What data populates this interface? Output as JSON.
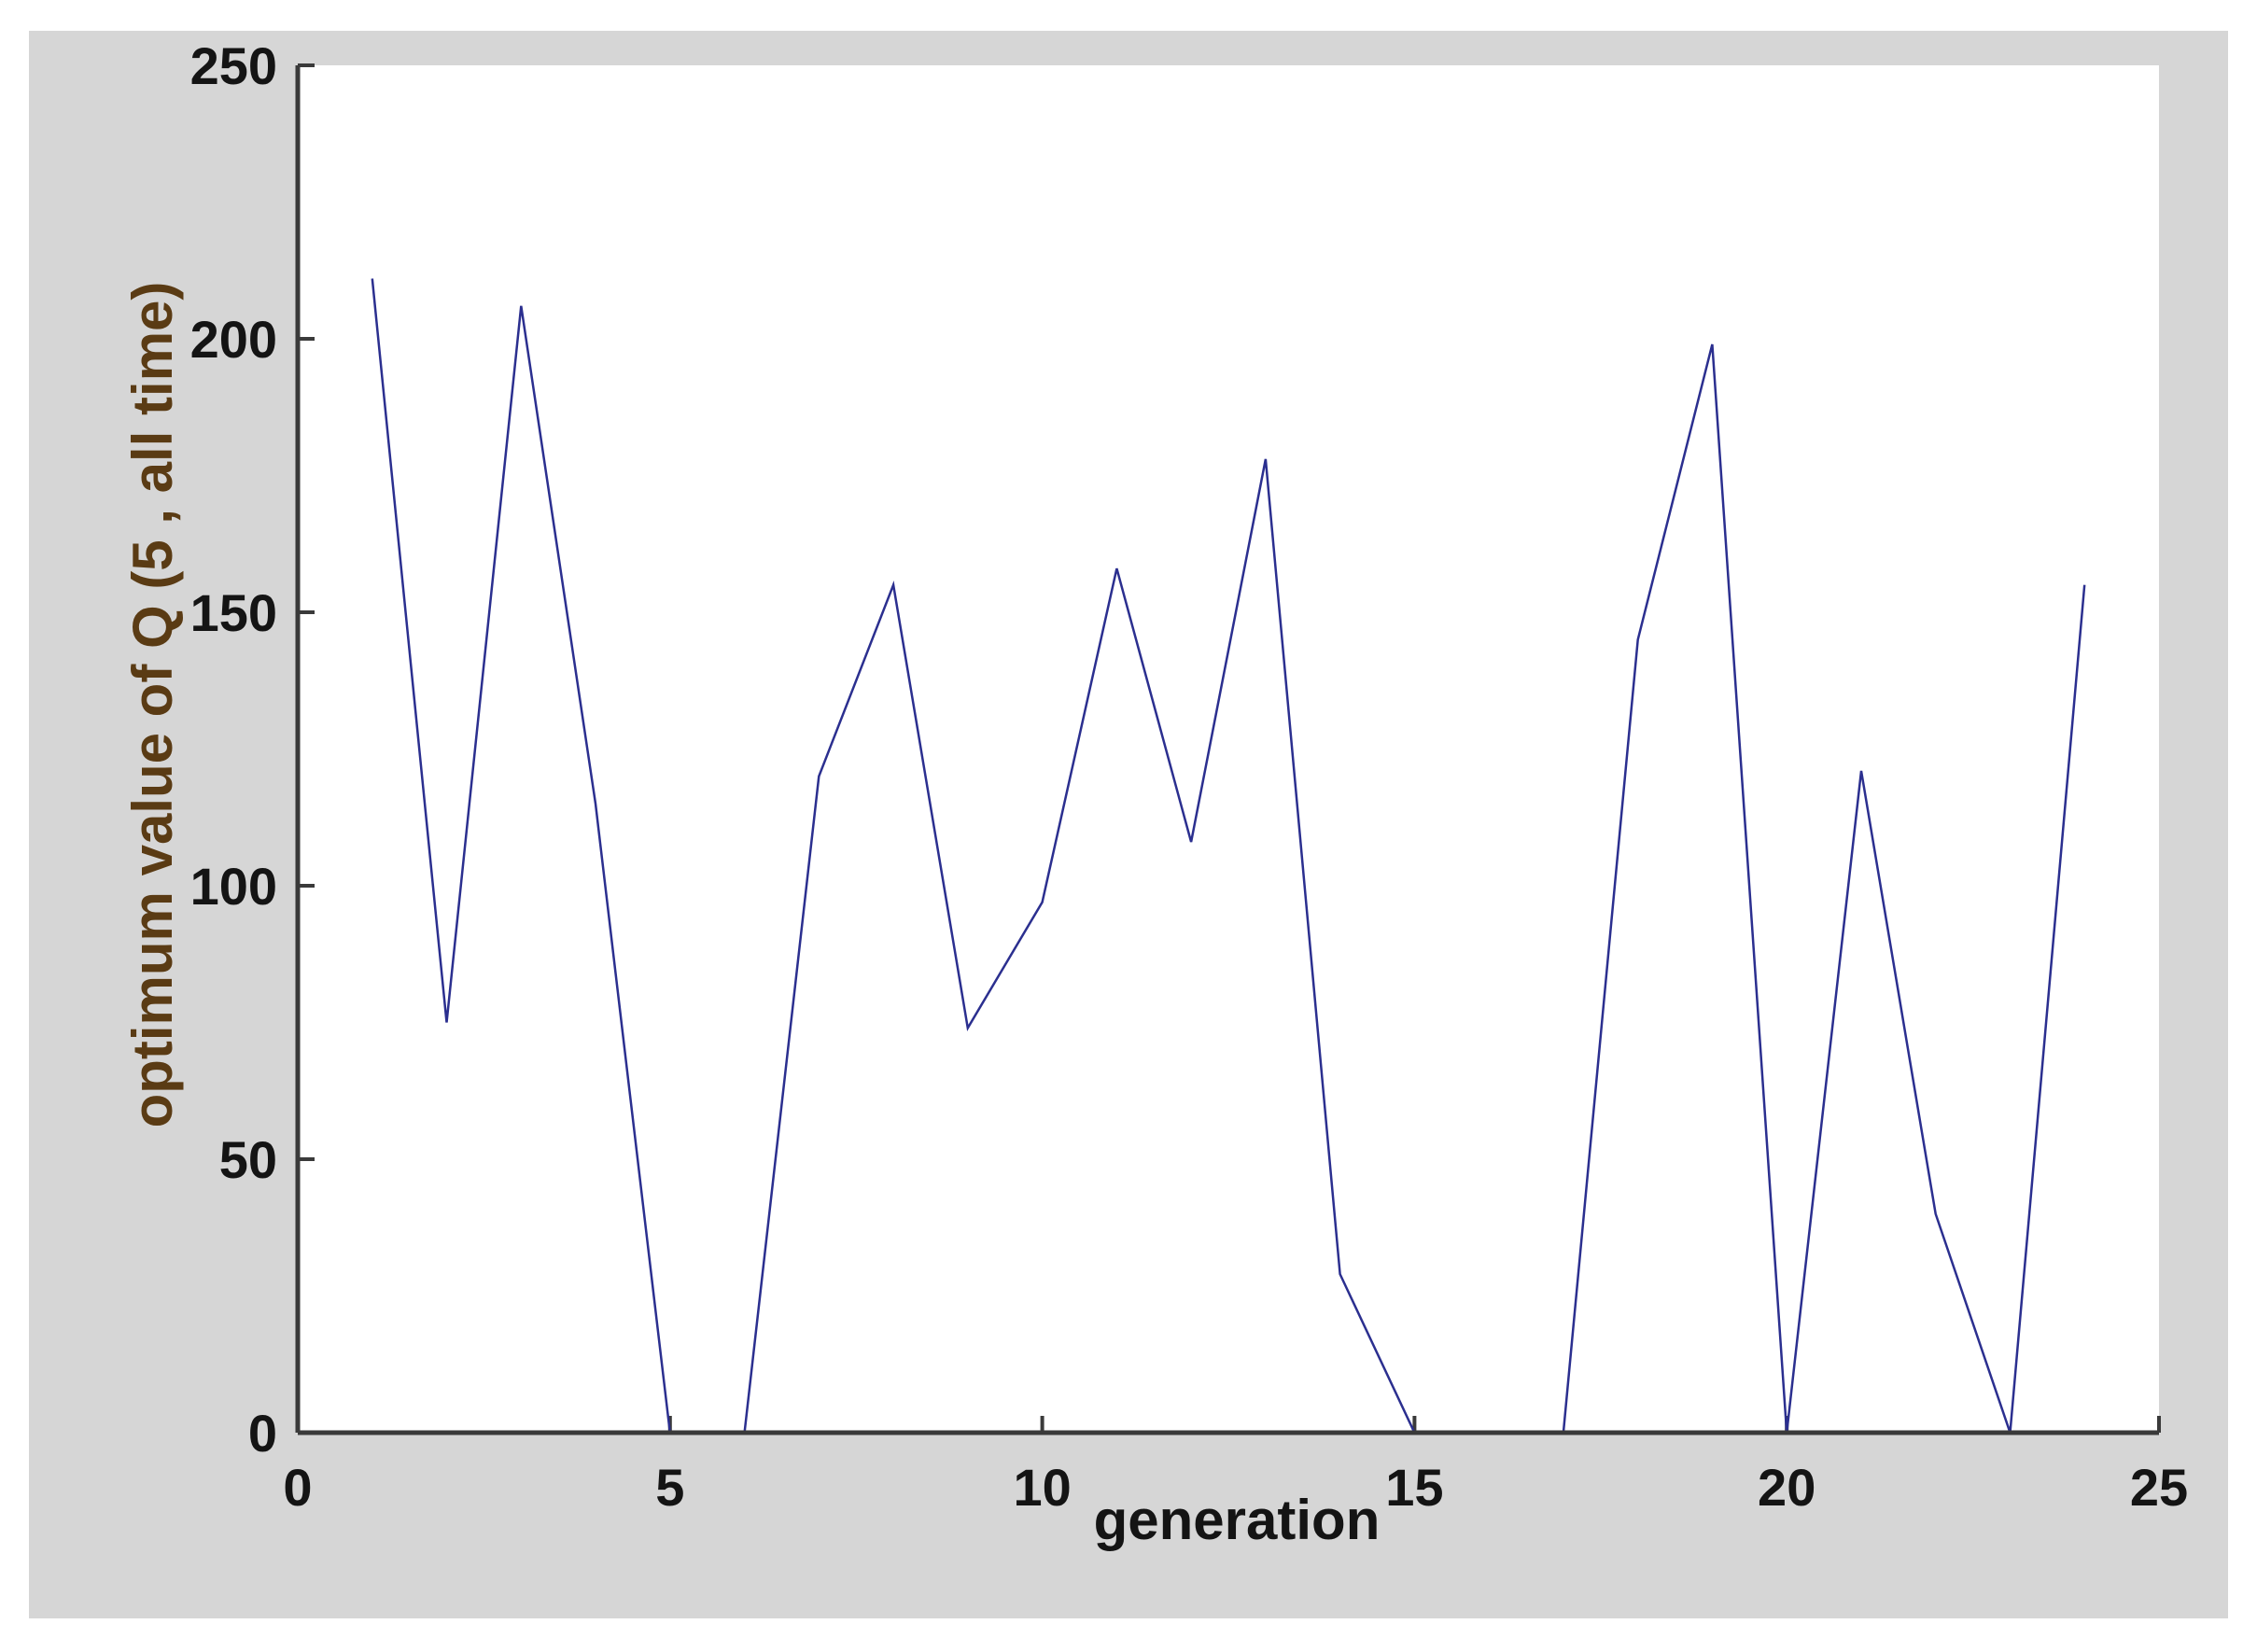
{
  "chart_data": {
    "type": "line",
    "title": "",
    "xlabel": "generation",
    "ylabel": "optimum value of Q (5 , all time)",
    "xlim": [
      0,
      25
    ],
    "ylim": [
      0,
      250
    ],
    "xticks": [
      "0",
      "5",
      "10",
      "15",
      "20",
      "25"
    ],
    "yticks": [
      "0",
      "50",
      "100",
      "150",
      "200",
      "250"
    ],
    "grid": false,
    "legend": "none",
    "series": [
      {
        "color": "#2b2f8f",
        "x": [
          1,
          2,
          3,
          4,
          5,
          6,
          7,
          8,
          9,
          10,
          11,
          12,
          13,
          14,
          15,
          16,
          17,
          18,
          19,
          20,
          21,
          22,
          23,
          24
        ],
        "y": [
          211,
          75,
          206,
          115,
          0,
          0,
          120,
          155,
          74,
          97,
          158,
          108,
          178,
          29,
          0,
          0,
          0,
          145,
          199,
          0,
          121,
          40,
          0,
          155
        ]
      }
    ]
  },
  "colors": {
    "figure_background": "#d6d6d6",
    "plot_background": "#ffffff",
    "axis": "#3a3a3a",
    "line": "#2b2f8f"
  }
}
